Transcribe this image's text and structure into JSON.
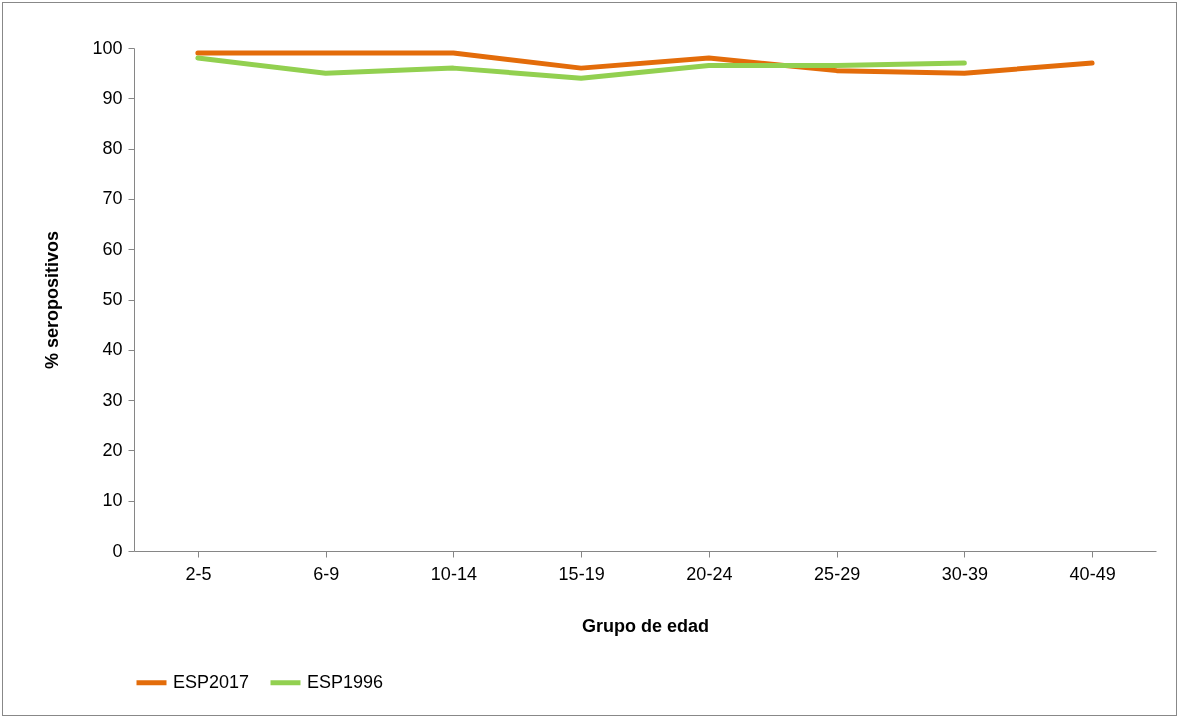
{
  "chart_data": {
    "type": "line",
    "xlabel": "Grupo de edad",
    "ylabel": "% seropositivos",
    "categories": [
      "2-5",
      "6-9",
      "10-14",
      "15-19",
      "20-24",
      "25-29",
      "30-39",
      "40-49"
    ],
    "series": [
      {
        "name": "ESP2017",
        "color": "#e36c0a",
        "values": [
          99,
          99,
          99,
          96,
          98,
          95.5,
          95,
          97
        ]
      },
      {
        "name": "ESP1996",
        "color": "#92d050",
        "values": [
          98,
          95,
          96,
          94,
          96.5,
          96.5,
          97,
          null
        ]
      }
    ],
    "ylim": [
      0,
      100
    ],
    "yticks": [
      0,
      10,
      20,
      30,
      40,
      50,
      60,
      70,
      80,
      90,
      100
    ],
    "grid": false,
    "legend": "bottom",
    "marker": "none",
    "line_style": "solid"
  }
}
